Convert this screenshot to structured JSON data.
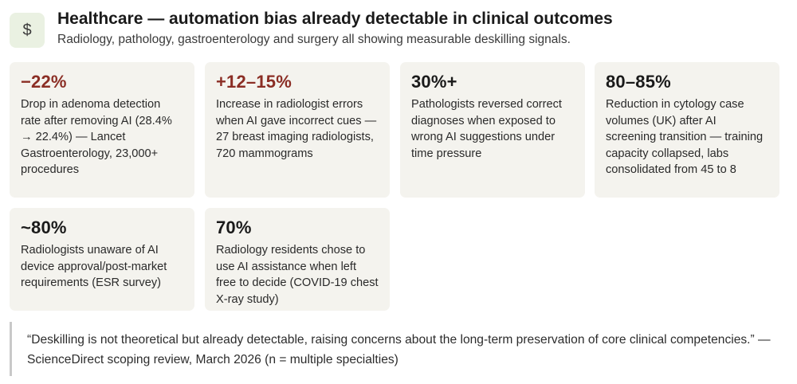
{
  "header": {
    "icon": "dollar-icon",
    "icon_glyph": "$",
    "title": "Healthcare — automation bias already detectable in clinical outcomes",
    "subtitle": "Radiology, pathology, gastroenterology and surgery all showing measurable deskilling signals."
  },
  "colors": {
    "negative_accent": "#8b2e25",
    "card_background": "#f4f3ee",
    "icon_background": "#eaf1e2"
  },
  "cards": [
    {
      "value": "−22%",
      "tone": "negative",
      "description": "Drop in adenoma detection rate after removing AI (28.4% → 22.4%) — Lancet Gastroenterology, 23,000+ procedures"
    },
    {
      "value": "+12–15%",
      "tone": "negative",
      "description": "Increase in radiologist errors when AI gave incorrect cues — 27 breast imaging radiologists, 720 mammograms"
    },
    {
      "value": "30%+",
      "tone": "neutral",
      "description": "Pathologists reversed correct diagnoses when exposed to wrong AI suggestions under time pressure"
    },
    {
      "value": "80–85%",
      "tone": "neutral",
      "description": "Reduction in cytology case volumes (UK) after AI screening transition — training capacity collapsed, labs consolidated from 45 to 8"
    },
    {
      "value": "~80%",
      "tone": "neutral",
      "description": "Radiologists unaware of AI device approval/post-market requirements (ESR survey)"
    },
    {
      "value": "70%",
      "tone": "neutral",
      "description": "Radiology residents chose to use AI assistance when left free to decide (COVID-19 chest X-ray study)"
    }
  ],
  "quote": {
    "text": "“Deskilling is not theoretical but already detectable, raising concerns about the long-term preservation of core clinical competencies.” — ScienceDirect scoping review, March 2026 (n = multiple specialties)"
  }
}
